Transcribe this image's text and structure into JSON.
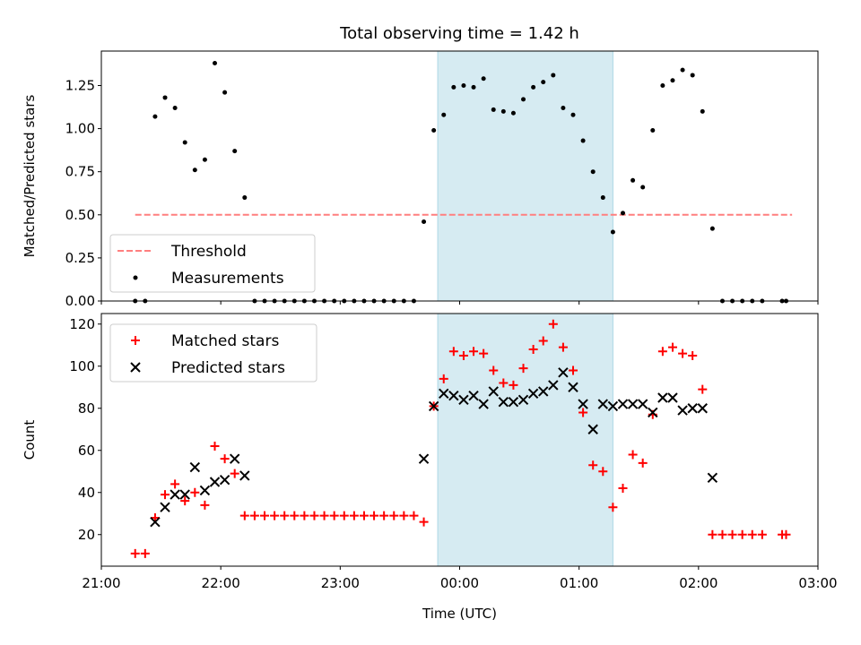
{
  "chart_data": [
    {
      "type": "scatter",
      "title": "Total observing time = 1.42 h",
      "xlabel": "",
      "ylabel": "Matched/Predicted stars",
      "xlim": [
        "21:00",
        "03:00"
      ],
      "ylim": [
        0,
        1.45
      ],
      "yticks": [
        "0.00",
        "0.25",
        "0.50",
        "0.75",
        "1.00",
        "1.25"
      ],
      "highlight_span": {
        "start": "23:49",
        "end": "01:17",
        "color": "#add8e6"
      },
      "legend_position": "lower left",
      "series": [
        {
          "name": "Threshold",
          "style": "dashed-line",
          "color": "#ff7f7f",
          "points": [
            [
              "21:17",
              0.5
            ],
            [
              "02:47",
              0.5
            ]
          ]
        },
        {
          "name": "Measurements",
          "style": "dot",
          "color": "#000000",
          "points": [
            [
              "21:17",
              0.0
            ],
            [
              "21:22",
              0.0
            ],
            [
              "21:27",
              1.07
            ],
            [
              "21:32",
              1.18
            ],
            [
              "21:37",
              1.12
            ],
            [
              "21:42",
              0.92
            ],
            [
              "21:47",
              0.76
            ],
            [
              "21:52",
              0.82
            ],
            [
              "21:57",
              1.38
            ],
            [
              "22:02",
              1.21
            ],
            [
              "22:07",
              0.87
            ],
            [
              "22:12",
              0.6
            ],
            [
              "22:17",
              0.0
            ],
            [
              "22:22",
              0.0
            ],
            [
              "22:27",
              0.0
            ],
            [
              "22:32",
              0.0
            ],
            [
              "22:37",
              0.0
            ],
            [
              "22:42",
              0.0
            ],
            [
              "22:47",
              0.0
            ],
            [
              "22:52",
              0.0
            ],
            [
              "22:57",
              0.0
            ],
            [
              "23:02",
              0.0
            ],
            [
              "23:07",
              0.0
            ],
            [
              "23:12",
              0.0
            ],
            [
              "23:17",
              0.0
            ],
            [
              "23:22",
              0.0
            ],
            [
              "23:27",
              0.0
            ],
            [
              "23:32",
              0.0
            ],
            [
              "23:37",
              0.0
            ],
            [
              "23:42",
              0.46
            ],
            [
              "23:47",
              0.99
            ],
            [
              "23:52",
              1.08
            ],
            [
              "23:57",
              1.24
            ],
            [
              "00:02",
              1.25
            ],
            [
              "00:07",
              1.24
            ],
            [
              "00:12",
              1.29
            ],
            [
              "00:17",
              1.11
            ],
            [
              "00:22",
              1.1
            ],
            [
              "00:27",
              1.09
            ],
            [
              "00:32",
              1.17
            ],
            [
              "00:37",
              1.24
            ],
            [
              "00:42",
              1.27
            ],
            [
              "00:47",
              1.31
            ],
            [
              "00:52",
              1.12
            ],
            [
              "00:57",
              1.08
            ],
            [
              "01:02",
              0.93
            ],
            [
              "01:07",
              0.75
            ],
            [
              "01:12",
              0.6
            ],
            [
              "01:17",
              0.4
            ],
            [
              "01:22",
              0.51
            ],
            [
              "01:27",
              0.7
            ],
            [
              "01:32",
              0.66
            ],
            [
              "01:37",
              0.99
            ],
            [
              "01:42",
              1.25
            ],
            [
              "01:47",
              1.28
            ],
            [
              "01:52",
              1.34
            ],
            [
              "01:57",
              1.31
            ],
            [
              "02:02",
              1.1
            ],
            [
              "02:07",
              0.42
            ],
            [
              "02:12",
              0.0
            ],
            [
              "02:17",
              0.0
            ],
            [
              "02:22",
              0.0
            ],
            [
              "02:27",
              0.0
            ],
            [
              "02:32",
              0.0
            ],
            [
              "02:42",
              0.0
            ],
            [
              "02:44",
              0.0
            ]
          ]
        }
      ]
    },
    {
      "type": "scatter",
      "title": "",
      "xlabel": "Time (UTC)",
      "ylabel": "Count",
      "xlim": [
        "21:00",
        "03:00"
      ],
      "xticks": [
        "21:00",
        "22:00",
        "23:00",
        "00:00",
        "01:00",
        "02:00",
        "03:00"
      ],
      "ylim": [
        5,
        125
      ],
      "yticks": [
        "20",
        "40",
        "60",
        "80",
        "100",
        "120"
      ],
      "highlight_span": {
        "start": "23:49",
        "end": "01:17",
        "color": "#add8e6"
      },
      "legend_position": "upper left",
      "series": [
        {
          "name": "Matched stars",
          "style": "plus",
          "color": "#ff0000",
          "points": [
            [
              "21:17",
              11
            ],
            [
              "21:22",
              11
            ],
            [
              "21:27",
              28
            ],
            [
              "21:32",
              39
            ],
            [
              "21:37",
              44
            ],
            [
              "21:42",
              36
            ],
            [
              "21:47",
              40
            ],
            [
              "21:52",
              34
            ],
            [
              "21:57",
              62
            ],
            [
              "22:02",
              56
            ],
            [
              "22:07",
              49
            ],
            [
              "22:12",
              29
            ],
            [
              "22:17",
              29
            ],
            [
              "22:22",
              29
            ],
            [
              "22:27",
              29
            ],
            [
              "22:32",
              29
            ],
            [
              "22:37",
              29
            ],
            [
              "22:42",
              29
            ],
            [
              "22:47",
              29
            ],
            [
              "22:52",
              29
            ],
            [
              "22:57",
              29
            ],
            [
              "23:02",
              29
            ],
            [
              "23:07",
              29
            ],
            [
              "23:12",
              29
            ],
            [
              "23:17",
              29
            ],
            [
              "23:22",
              29
            ],
            [
              "23:27",
              29
            ],
            [
              "23:32",
              29
            ],
            [
              "23:37",
              29
            ],
            [
              "23:42",
              26
            ],
            [
              "23:47",
              81
            ],
            [
              "23:52",
              94
            ],
            [
              "23:57",
              107
            ],
            [
              "00:02",
              105
            ],
            [
              "00:07",
              107
            ],
            [
              "00:12",
              106
            ],
            [
              "00:17",
              98
            ],
            [
              "00:22",
              92
            ],
            [
              "00:27",
              91
            ],
            [
              "00:32",
              99
            ],
            [
              "00:37",
              108
            ],
            [
              "00:42",
              112
            ],
            [
              "00:47",
              120
            ],
            [
              "00:52",
              109
            ],
            [
              "00:57",
              98
            ],
            [
              "01:02",
              78
            ],
            [
              "01:07",
              53
            ],
            [
              "01:12",
              50
            ],
            [
              "01:17",
              33
            ],
            [
              "01:22",
              42
            ],
            [
              "01:27",
              58
            ],
            [
              "01:32",
              54
            ],
            [
              "01:37",
              77
            ],
            [
              "01:42",
              107
            ],
            [
              "01:47",
              109
            ],
            [
              "01:52",
              106
            ],
            [
              "01:57",
              105
            ],
            [
              "02:02",
              89
            ],
            [
              "02:07",
              20
            ],
            [
              "02:12",
              20
            ],
            [
              "02:17",
              20
            ],
            [
              "02:22",
              20
            ],
            [
              "02:27",
              20
            ],
            [
              "02:32",
              20
            ],
            [
              "02:42",
              20
            ],
            [
              "02:44",
              20
            ]
          ]
        },
        {
          "name": "Predicted stars",
          "style": "x",
          "color": "#000000",
          "points": [
            [
              "21:27",
              26
            ],
            [
              "21:32",
              33
            ],
            [
              "21:37",
              39
            ],
            [
              "21:42",
              39
            ],
            [
              "21:47",
              52
            ],
            [
              "21:52",
              41
            ],
            [
              "21:57",
              45
            ],
            [
              "22:02",
              46
            ],
            [
              "22:07",
              56
            ],
            [
              "22:12",
              48
            ],
            [
              "23:42",
              56
            ],
            [
              "23:47",
              81
            ],
            [
              "23:52",
              87
            ],
            [
              "23:57",
              86
            ],
            [
              "00:02",
              84
            ],
            [
              "00:07",
              86
            ],
            [
              "00:12",
              82
            ],
            [
              "00:17",
              88
            ],
            [
              "00:22",
              83
            ],
            [
              "00:27",
              83
            ],
            [
              "00:32",
              84
            ],
            [
              "00:37",
              87
            ],
            [
              "00:42",
              88
            ],
            [
              "00:47",
              91
            ],
            [
              "00:52",
              97
            ],
            [
              "00:57",
              90
            ],
            [
              "01:02",
              82
            ],
            [
              "01:07",
              70
            ],
            [
              "01:12",
              82
            ],
            [
              "01:17",
              81
            ],
            [
              "01:22",
              82
            ],
            [
              "01:27",
              82
            ],
            [
              "01:32",
              82
            ],
            [
              "01:37",
              78
            ],
            [
              "01:42",
              85
            ],
            [
              "01:47",
              85
            ],
            [
              "01:52",
              79
            ],
            [
              "01:57",
              80
            ],
            [
              "02:02",
              80
            ],
            [
              "02:07",
              47
            ]
          ]
        }
      ]
    }
  ]
}
